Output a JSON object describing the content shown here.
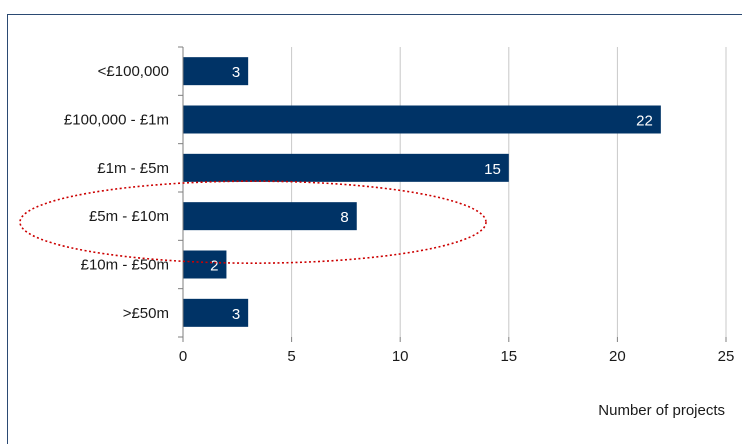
{
  "chart_data": {
    "type": "bar",
    "orientation": "horizontal",
    "categories": [
      "<£100,000",
      "£100,000 - £1m",
      "£1m - £5m",
      "£5m - £10m",
      "£10m - £50m",
      ">£50m"
    ],
    "values": [
      3,
      22,
      15,
      8,
      2,
      3
    ],
    "xlabel": "Number of projects",
    "ylabel": "",
    "xlim": [
      0,
      25
    ],
    "xticks": [
      "0",
      "5",
      "10",
      "15",
      "20",
      "25"
    ],
    "grid": "vertical",
    "data_labels": [
      "3",
      "22",
      "15",
      "8",
      "2",
      "3"
    ],
    "highlighted_category": "£5m - £10m",
    "colors": {
      "bar": "#003366",
      "highlight_outline": "#cc0000",
      "frame": "#2b4a73"
    }
  }
}
